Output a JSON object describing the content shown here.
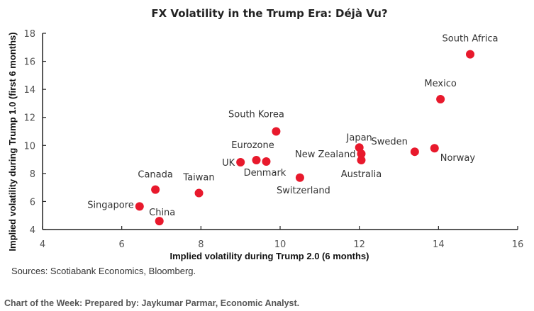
{
  "chart_data": {
    "type": "scatter",
    "title": "FX Volatility in the Trump Era: Déjà Vu?",
    "xlabel": "Implied volatility during Trump 2.0  (6 months)",
    "ylabel": "Implied volatility during Trump 1.0  (first 6 months)",
    "xlim": [
      4,
      16
    ],
    "ylim": [
      4,
      18
    ],
    "xticks": [
      4,
      6,
      8,
      10,
      12,
      14,
      16
    ],
    "yticks": [
      4,
      6,
      8,
      10,
      12,
      14,
      16,
      18
    ],
    "grid": false,
    "marker_color": "#E8192C",
    "points": [
      {
        "label": "South Africa",
        "x": 14.8,
        "y": 16.5
      },
      {
        "label": "Mexico",
        "x": 14.05,
        "y": 13.3
      },
      {
        "label": "South Korea",
        "x": 9.9,
        "y": 11.0
      },
      {
        "label": "Japan",
        "x": 12.0,
        "y": 9.85
      },
      {
        "label": "New Zealand",
        "x": 12.05,
        "y": 9.4
      },
      {
        "label": "Australia",
        "x": 12.05,
        "y": 8.95
      },
      {
        "label": "Sweden",
        "x": 13.4,
        "y": 9.55
      },
      {
        "label": "Norway",
        "x": 13.9,
        "y": 9.8
      },
      {
        "label": "UK",
        "x": 9.0,
        "y": 8.8
      },
      {
        "label": "Eurozone",
        "x": 9.4,
        "y": 8.95
      },
      {
        "label": "Denmark",
        "x": 9.65,
        "y": 8.85
      },
      {
        "label": "Switzerland",
        "x": 10.5,
        "y": 7.7
      },
      {
        "label": "Canada",
        "x": 6.85,
        "y": 6.85
      },
      {
        "label": "Taiwan",
        "x": 7.95,
        "y": 6.6
      },
      {
        "label": "Singapore",
        "x": 6.45,
        "y": 5.65
      },
      {
        "label": "China",
        "x": 6.95,
        "y": 4.6
      }
    ]
  },
  "source": "Sources: Scotiabank Economics,  Bloomberg.",
  "footer": "Chart of the Week: Prepared by: Jaykumar Parmar, Economic Analyst."
}
